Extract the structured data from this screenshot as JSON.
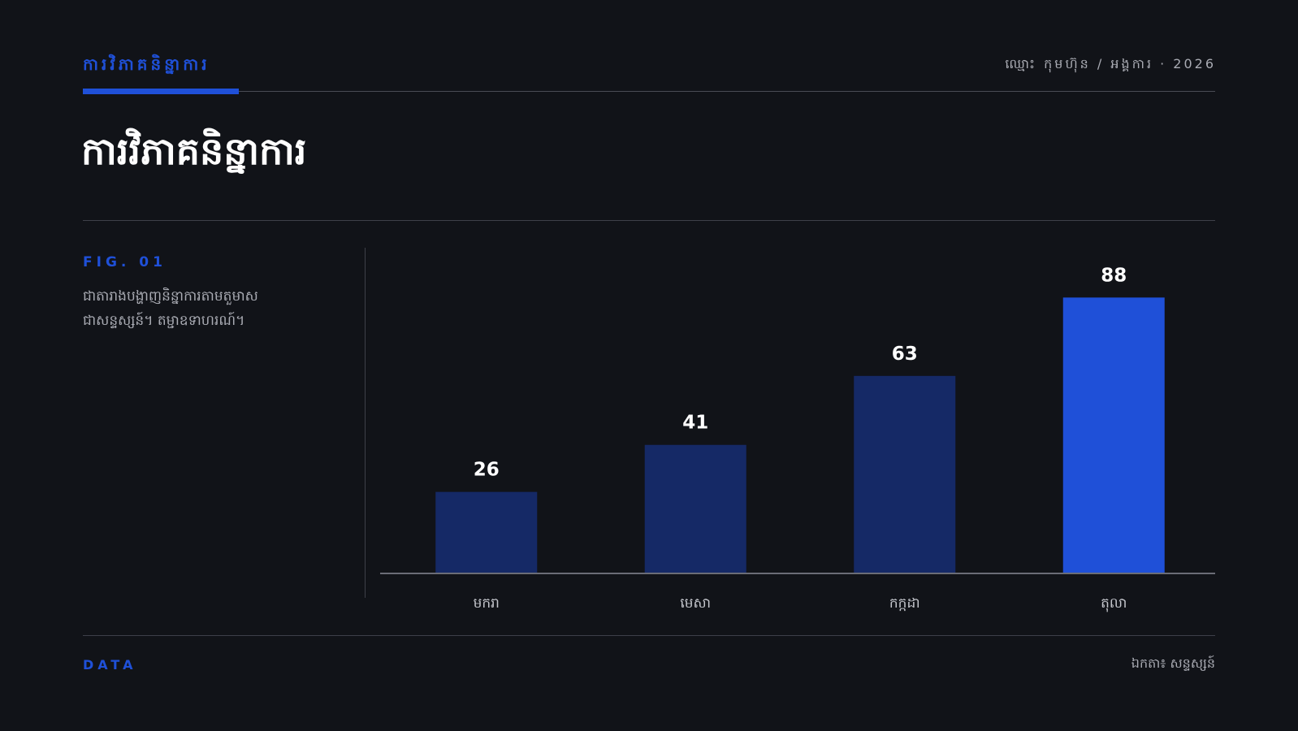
{
  "header": {
    "eyebrow": "ការវិភាគនិន្នាការ",
    "meta": "ឈ្មោះ កុមហ៊ុន / អង្គការ · 2026"
  },
  "title": "ការវិភាគនិន្នាការ",
  "figure": {
    "label": "FIG. 01",
    "description_lines": [
      "ជាតារាងបង្ហាញនិន្នាការតាមតួមាស",
      "ជាសន្ទស្សន៍។ តម្ជាឧទាហរណ៍។"
    ]
  },
  "chart_data": {
    "type": "bar",
    "categories": [
      "មករា",
      "មេសា",
      "កក្កដា",
      "តុលា"
    ],
    "values": [
      26,
      41,
      63,
      88
    ],
    "ylim": [
      0,
      100
    ],
    "grid": false,
    "colors": {
      "default": "#152966",
      "highlight": "#1f50d8",
      "axis": "#6b6d76",
      "label": "#ffffff",
      "tick": "#c4c6cc"
    },
    "highlight_index": 3
  },
  "footer": {
    "left": "DATA",
    "right": "ឯកតា៖ សន្ទស្សន៍"
  }
}
